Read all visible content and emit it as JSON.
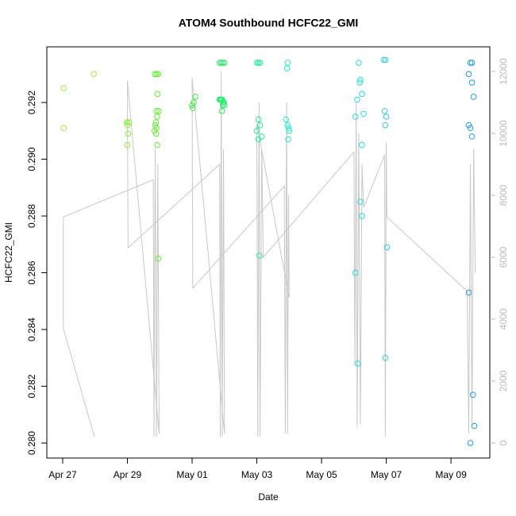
{
  "chart_data": {
    "type": "scatter",
    "title": "ATOM4 Southbound HCFC22_GMI",
    "x_label": "Date",
    "y_label": "HCFC22_GMI",
    "xlim": [
      -0.49,
      13.2
    ],
    "xticks": [
      {
        "value": 0,
        "label": "Apr 27"
      },
      {
        "value": 2,
        "label": "Apr 29"
      },
      {
        "value": 4,
        "label": "May 01"
      },
      {
        "value": 6,
        "label": "May 03"
      },
      {
        "value": 8,
        "label": "May 05"
      },
      {
        "value": 10,
        "label": "May 07"
      },
      {
        "value": 12,
        "label": "May 09"
      }
    ],
    "ylim": [
      0.27947,
      0.29396
    ],
    "yticks": [
      {
        "value": 0.28,
        "label": "0.280"
      },
      {
        "value": 0.282,
        "label": "0.282"
      },
      {
        "value": 0.284,
        "label": "0.284"
      },
      {
        "value": 0.286,
        "label": "0.286"
      },
      {
        "value": 0.288,
        "label": "0.288"
      },
      {
        "value": 0.29,
        "label": "0.290"
      },
      {
        "value": 0.292,
        "label": "0.292"
      }
    ],
    "y2lim": [
      -487,
      12795
    ],
    "y2ticks": [
      0,
      2000,
      4000,
      6000,
      8000,
      10000,
      12000
    ],
    "series": [
      {
        "type": "line",
        "axis": "y2",
        "color": "#c8c8c8",
        "x": [
          0.98,
          0.02,
          0.02,
          2.8,
          2.82,
          2.86,
          2.9,
          2.94,
          2.98,
          2.0,
          2.02,
          4.85,
          4.87,
          4.9,
          4.93,
          4.97,
          5.0,
          4.0,
          4.02,
          6.85,
          6.88,
          6.92,
          6.95,
          6.98,
          7.0,
          6.0,
          6.03,
          6.07,
          6.1,
          6.15,
          6.2,
          9.0,
          9.03,
          9.07,
          9.1,
          9.15,
          9.2,
          9.25,
          9.3,
          9.95,
          9.97,
          10.0,
          10.02,
          12.5,
          12.55,
          12.6,
          12.65,
          12.7,
          12.75
        ],
        "values": [
          200,
          3700,
          7300,
          8500,
          200,
          9500,
          200,
          9000,
          300,
          11700,
          6300,
          9000,
          200,
          12000,
          200,
          9500,
          300,
          11800,
          5000,
          8300,
          300,
          11000,
          300,
          8000,
          4700,
          10300,
          200,
          11000,
          200,
          9500,
          6000,
          9400,
          2500,
          11000,
          500,
          10000,
          600,
          9000,
          7600,
          9300,
          200,
          9700,
          7300,
          4900,
          300,
          9000,
          500,
          9500,
          5500
        ]
      },
      {
        "color": "#aaee33",
        "x": [
          0.03,
          0.03,
          0.96
        ],
        "values": [
          0.2925,
          0.2911,
          0.293
        ]
      },
      {
        "color": "#88ee33",
        "x": [
          1.98,
          2.0,
          2.02,
          2.0,
          2.04
        ],
        "values": [
          0.2913,
          0.2912,
          0.2909,
          0.2905,
          0.2913
        ]
      },
      {
        "color": "#66ee33",
        "x": [
          2.85,
          2.9,
          2.95,
          2.93,
          2.9,
          2.97,
          2.92,
          2.88,
          2.86,
          2.9,
          2.84,
          2.89,
          2.92,
          2.96
        ],
        "values": [
          0.293,
          0.293,
          0.293,
          0.2923,
          0.2917,
          0.2917,
          0.2915,
          0.2913,
          0.2912,
          0.2911,
          0.291,
          0.2909,
          0.2905,
          0.2865
        ]
      },
      {
        "color": "#44ee44",
        "x": [
          4.0,
          4.02,
          4.05,
          4.1
        ],
        "values": [
          0.2919,
          0.2918,
          0.292,
          0.2922
        ]
      },
      {
        "color": "#22ee66",
        "x": [
          4.85,
          4.9,
          4.95,
          5.0,
          4.85,
          4.88,
          4.9,
          4.93,
          4.96,
          4.98,
          5.0,
          4.95,
          4.92
        ],
        "values": [
          0.2934,
          0.2934,
          0.2934,
          0.2934,
          0.2921,
          0.2921,
          0.2921,
          0.2921,
          0.292,
          0.292,
          0.2919,
          0.2919,
          0.2917
        ]
      },
      {
        "color": "#22ee99",
        "x": [
          6.0,
          6.05,
          6.1,
          6.05,
          6.1,
          6.0,
          6.15,
          6.05,
          6.08
        ],
        "values": [
          0.2934,
          0.2934,
          0.2934,
          0.2914,
          0.2912,
          0.291,
          0.2908,
          0.2907,
          0.2866
        ]
      },
      {
        "color": "#22eecc",
        "x": [
          6.95,
          6.93,
          6.9,
          6.95,
          6.98,
          7.0,
          6.97
        ],
        "values": [
          0.2934,
          0.2932,
          0.2914,
          0.2912,
          0.2911,
          0.291,
          0.2907
        ]
      },
      {
        "color": "#22dddd",
        "x": [
          9.15,
          9.2,
          9.18,
          9.25,
          9.1,
          9.3,
          9.05,
          9.25,
          9.2,
          9.25,
          9.05,
          9.12
        ],
        "values": [
          0.2934,
          0.2928,
          0.2927,
          0.2923,
          0.2921,
          0.2916,
          0.2915,
          0.2905,
          0.2885,
          0.288,
          0.286,
          0.2828
        ]
      },
      {
        "color": "#33ccee",
        "x": [
          9.92,
          9.98,
          9.95,
          10.0,
          9.97,
          10.02,
          9.97
        ],
        "values": [
          0.2935,
          0.2935,
          0.2917,
          0.2915,
          0.2912,
          0.2869,
          0.283
        ]
      },
      {
        "color": "#2299ee",
        "x": [
          12.6,
          12.65,
          12.55,
          12.65,
          12.7,
          12.55,
          12.6,
          12.65,
          12.55,
          12.68,
          12.72,
          12.6
        ],
        "values": [
          0.2934,
          0.2934,
          0.293,
          0.2927,
          0.2922,
          0.2912,
          0.2911,
          0.2908,
          0.2853,
          0.2817,
          0.2806,
          0.28
        ]
      }
    ]
  }
}
